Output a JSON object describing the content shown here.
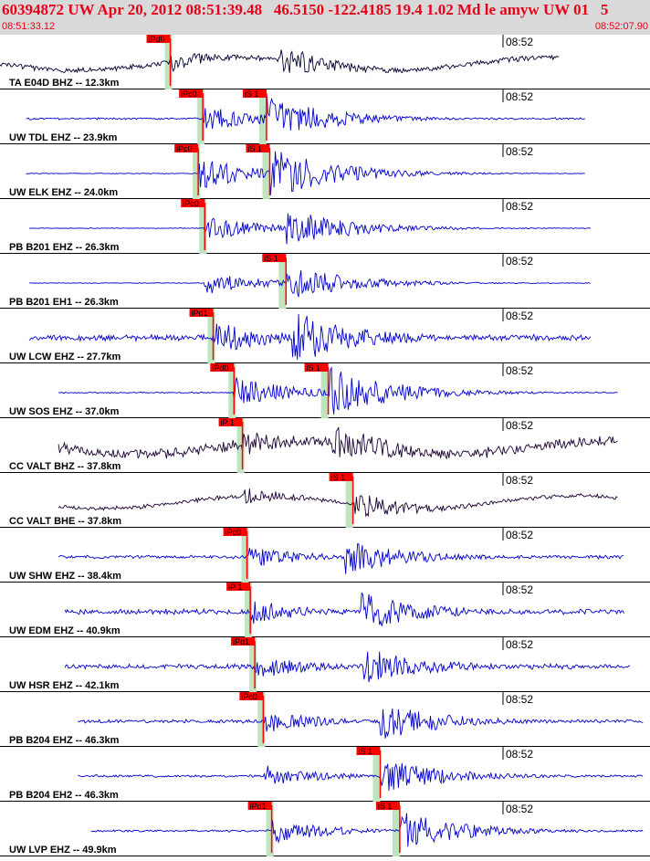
{
  "header": {
    "title": "60394872 UW Apr 20, 2012 08:51:39.48   46.5150 -122.4185 19.4 1.02 Md le amyw UW 01   5",
    "time_start": "08:51:33.12",
    "time_end": "08:52:07.90",
    "colors": {
      "title": "#e8001a",
      "header_bg": "#d9d9d9",
      "pick_red": "#ff0000",
      "window_green": "#bfe4bf"
    }
  },
  "traces": [
    {
      "label": "TA E04D BHZ -- 12.3km",
      "time_tick": "08:52",
      "color": "#000033",
      "p_pick": "iPd0",
      "s_pick": "",
      "p_frac": 0.262,
      "s_frac": 0.43,
      "amp": 0.45,
      "noise": 0.12,
      "long_period": true,
      "start": 0.0,
      "end": 0.86
    },
    {
      "label": "UW TDL EHZ -- 23.9km",
      "time_tick": "08:52",
      "color": "#0000cc",
      "p_pick": "iPc0",
      "s_pick": "iS 1",
      "p_frac": 0.312,
      "s_frac": 0.41,
      "amp": 0.7,
      "noise": 0.05,
      "long_period": false,
      "start": 0.04,
      "end": 0.9
    },
    {
      "label": "UW ELK EHZ -- 24.0km",
      "time_tick": "08:52",
      "color": "#0000cc",
      "p_pick": "iPc0",
      "s_pick": "iS 1",
      "p_frac": 0.305,
      "s_frac": 0.415,
      "amp": 0.8,
      "noise": 0.02,
      "long_period": false,
      "start": 0.04,
      "end": 0.9
    },
    {
      "label": "PB B201 EHZ -- 26.3km",
      "time_tick": "08:52",
      "color": "#0000cc",
      "p_pick": "iPc0",
      "s_pick": "",
      "p_frac": 0.315,
      "s_frac": 0.44,
      "amp": 0.6,
      "noise": 0.02,
      "long_period": false,
      "start": 0.045,
      "end": 0.91
    },
    {
      "label": "PB B201 EH1 -- 26.3km",
      "time_tick": "08:52",
      "color": "#0000cc",
      "p_pick": "",
      "s_pick": "iS 1",
      "p_frac": 0.315,
      "s_frac": 0.44,
      "amp": 0.55,
      "noise": 0.02,
      "long_period": false,
      "start": 0.045,
      "end": 0.91
    },
    {
      "label": "UW LCW EHZ -- 27.7km",
      "time_tick": "08:52",
      "color": "#0000cc",
      "p_pick": "iPd1",
      "s_pick": "",
      "p_frac": 0.328,
      "s_frac": 0.45,
      "amp": 0.85,
      "noise": 0.15,
      "long_period": false,
      "start": 0.045,
      "end": 0.91
    },
    {
      "label": "UW SOS EHZ -- 37.0km",
      "time_tick": "08:52",
      "color": "#0000cc",
      "p_pick": "iPd0",
      "s_pick": "iS 1",
      "p_frac": 0.36,
      "s_frac": 0.505,
      "amp": 0.8,
      "noise": 0.03,
      "long_period": false,
      "start": 0.09,
      "end": 0.95
    },
    {
      "label": "CC VALT BHZ -- 37.8km",
      "time_tick": "08:52",
      "color": "#1a0033",
      "p_pick": "iP 1",
      "s_pick": "",
      "p_frac": 0.373,
      "s_frac": 0.51,
      "amp": 0.65,
      "noise": 0.25,
      "long_period": true,
      "start": 0.09,
      "end": 0.95
    },
    {
      "label": "CC VALT BHE -- 37.8km",
      "time_tick": "08:52",
      "color": "#1a0033",
      "p_pick": "",
      "s_pick": "iS 1",
      "p_frac": 0.373,
      "s_frac": 0.543,
      "amp": 0.4,
      "noise": 0.1,
      "long_period": true,
      "start": 0.09,
      "end": 0.95
    },
    {
      "label": "UW SHW EHZ -- 38.4km",
      "time_tick": "08:52",
      "color": "#0000cc",
      "p_pick": "iPc0",
      "s_pick": "",
      "p_frac": 0.38,
      "s_frac": 0.53,
      "amp": 0.55,
      "noise": 0.08,
      "long_period": false,
      "start": 0.09,
      "end": 0.96
    },
    {
      "label": "UW EDM EHZ -- 40.9km",
      "time_tick": "08:52",
      "color": "#0000cc",
      "p_pick": "iP 1",
      "s_pick": "",
      "p_frac": 0.385,
      "s_frac": 0.555,
      "amp": 0.6,
      "noise": 0.12,
      "long_period": false,
      "start": 0.1,
      "end": 0.96
    },
    {
      "label": "UW HSR EHZ -- 42.1km",
      "time_tick": "08:52",
      "color": "#0000cc",
      "p_pick": "iPd1",
      "s_pick": "",
      "p_frac": 0.392,
      "s_frac": 0.56,
      "amp": 0.6,
      "noise": 0.12,
      "long_period": false,
      "start": 0.1,
      "end": 0.97
    },
    {
      "label": "PB B204 EHZ -- 46.3km",
      "time_tick": "08:52",
      "color": "#0000cc",
      "p_pick": "iPc0",
      "s_pick": "",
      "p_frac": 0.405,
      "s_frac": 0.585,
      "amp": 0.6,
      "noise": 0.08,
      "long_period": false,
      "start": 0.12,
      "end": 0.99
    },
    {
      "label": "PB B204 EH2 -- 46.3km",
      "time_tick": "08:52",
      "color": "#0000cc",
      "p_pick": "",
      "s_pick": "iS 1",
      "p_frac": 0.405,
      "s_frac": 0.585,
      "amp": 0.55,
      "noise": 0.06,
      "long_period": false,
      "start": 0.12,
      "end": 0.99
    },
    {
      "label": "UW LVP EHZ -- 49.9km",
      "time_tick": "08:52",
      "color": "#0000cc",
      "p_pick": "iPd1",
      "s_pick": "iS 1",
      "p_frac": 0.418,
      "s_frac": 0.615,
      "amp": 0.6,
      "noise": 0.05,
      "long_period": false,
      "start": 0.14,
      "end": 0.99
    }
  ]
}
